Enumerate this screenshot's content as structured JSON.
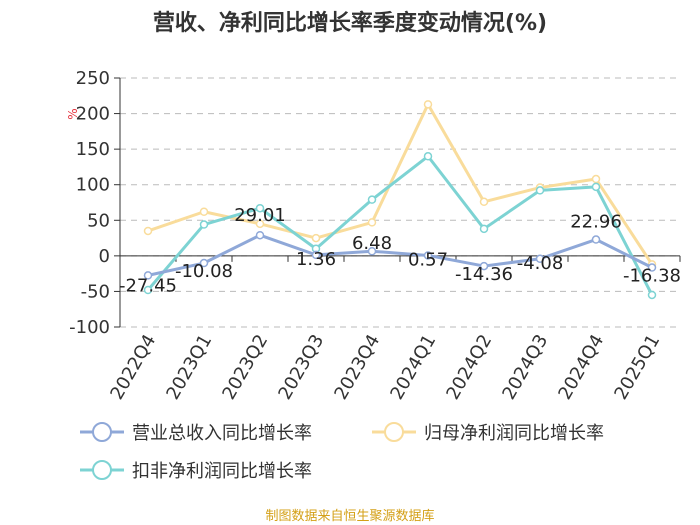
{
  "chart_data": {
    "type": "line",
    "title": "营收、净利同比增长率季度变动情况(%)",
    "unit_label": "%",
    "categories": [
      "2022Q4",
      "2023Q1",
      "2023Q2",
      "2023Q3",
      "2023Q4",
      "2024Q1",
      "2024Q2",
      "2024Q3",
      "2024Q4",
      "2025Q1"
    ],
    "ylim": [
      -100,
      250
    ],
    "yticks": [
      -100,
      -50,
      0,
      50,
      100,
      150,
      200,
      250
    ],
    "series": [
      {
        "name": "营业总收入同比增长率",
        "color": "#8fa8d8",
        "values": [
          -27.45,
          -10.08,
          29.01,
          1.36,
          6.48,
          0.57,
          -14.36,
          -4.08,
          22.96,
          -16.38
        ],
        "labels": [
          "-27.45",
          "-10.08",
          "29.01",
          "1.36",
          "6.48",
          "0.57",
          "-14.36",
          "-4.08",
          "22.96",
          "-16.38"
        ]
      },
      {
        "name": "归母净利润同比增长率",
        "color": "#f9dc9b",
        "values": [
          35,
          62,
          45,
          25,
          47,
          213,
          76,
          96,
          108,
          -12
        ]
      },
      {
        "name": "扣非净利润同比增长率",
        "color": "#7dd3d3",
        "values": [
          -48,
          44,
          67,
          10,
          79,
          140,
          38,
          92,
          97,
          -55
        ]
      }
    ],
    "legend_position": "bottom"
  },
  "source_text": "制图数据来自恒生聚源数据库"
}
